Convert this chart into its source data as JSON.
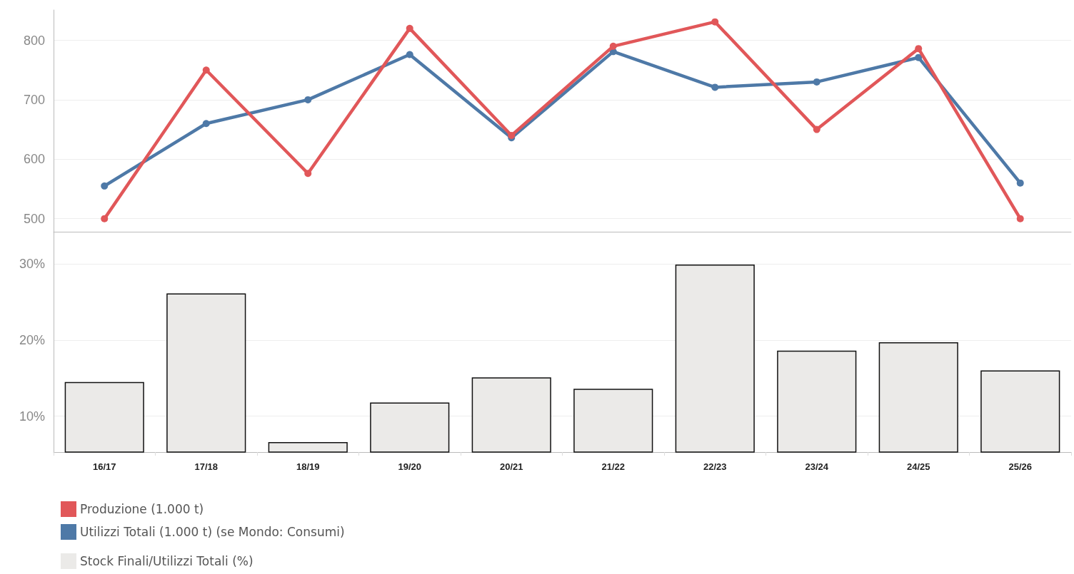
{
  "chart_data": [
    {
      "type": "line",
      "categories": [
        null,
        null,
        null,
        null,
        null,
        null,
        null,
        null,
        null,
        null
      ],
      "series": [
        {
          "name": "Produzione (1.000 t)",
          "color": "#e15759",
          "values": [
            500,
            750,
            576,
            820,
            640,
            790,
            831,
            650,
            786,
            500
          ]
        },
        {
          "name": "Utilizzi Totali (1.000 t) (se Mondo: Consumi)",
          "color": "#4e79a7",
          "values": [
            555,
            660,
            700,
            776,
            636,
            781,
            721,
            730,
            771,
            560
          ]
        }
      ],
      "ylim": [
        478,
        851
      ],
      "yticks": [
        500,
        600,
        700,
        800
      ],
      "grid": "y",
      "marker": "circle",
      "line_style": "solid",
      "legend": "bottom left",
      "tick_labels": "y"
    },
    {
      "type": "bar",
      "categories": [
        "16/17",
        "17/18",
        "18/19",
        "19/20",
        "20/21",
        "21/22",
        "22/23",
        "23/24",
        "24/25",
        "25/26"
      ],
      "series": [
        {
          "name": "Stock Finali/Utilizzi Totali (%)",
          "color": "#ebeae8",
          "values": [
            14.5,
            26.1,
            6.6,
            11.8,
            15.1,
            13.6,
            29.9,
            18.6,
            19.7,
            16.0
          ]
        }
      ],
      "ylim": [
        5.3,
        34.2
      ],
      "yticks": [
        {
          "value": 10,
          "label": "10%"
        },
        {
          "value": 20,
          "label": "20%"
        },
        {
          "value": 30,
          "label": "30%"
        }
      ],
      "grid": "y",
      "legend": "bottom left"
    }
  ]
}
